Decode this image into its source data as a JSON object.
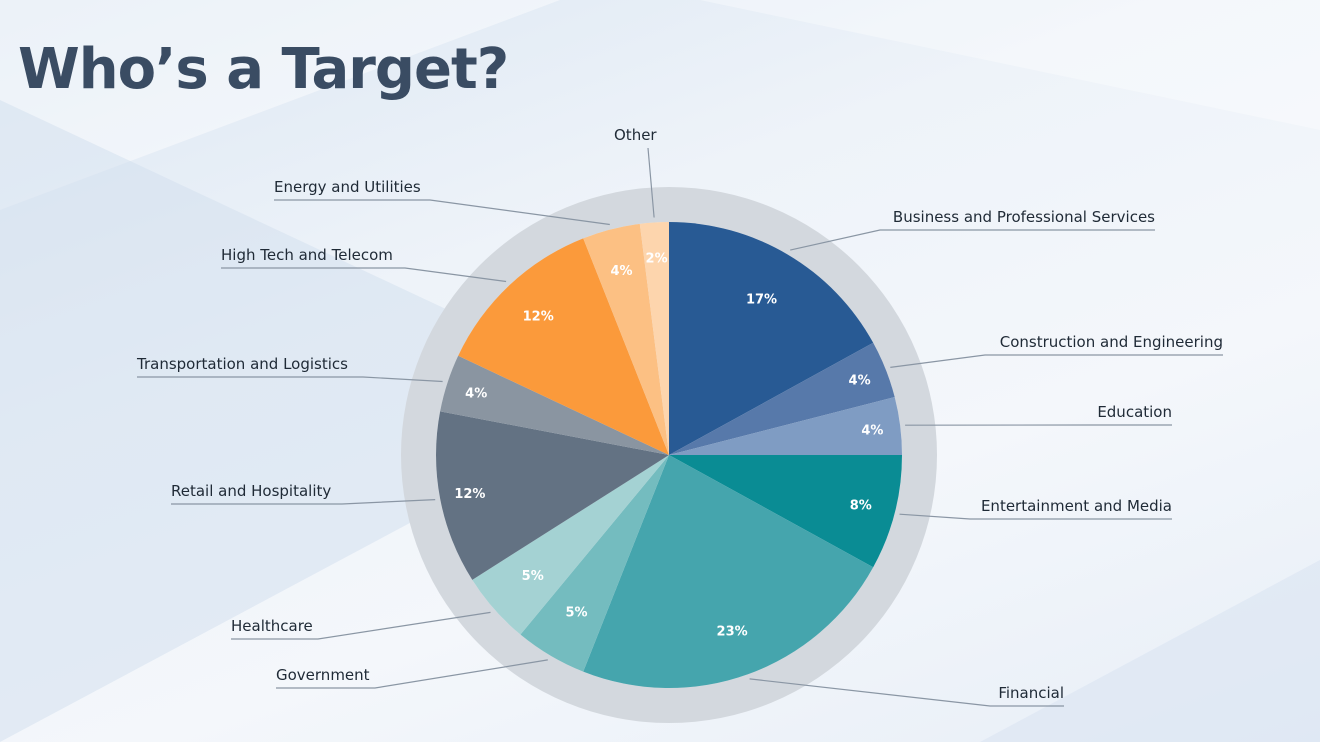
{
  "slide": {
    "title": "Who’s a Target?"
  },
  "colors": {
    "title": "#3a4c63",
    "ring": "#d3d8de",
    "leader": "#8a96a4"
  },
  "chart_data": {
    "type": "pie",
    "title": "",
    "start_angle_deg": 0,
    "direction": "clockwise",
    "slices": [
      {
        "label": "Business and Professional Services",
        "value": 17,
        "display": "17%",
        "color": "#285a94"
      },
      {
        "label": "Construction and Engineering",
        "value": 4,
        "display": "4%",
        "color": "#5779aa"
      },
      {
        "label": "Education",
        "value": 4,
        "display": "4%",
        "color": "#7f9cc3"
      },
      {
        "label": "Entertainment and Media",
        "value": 8,
        "display": "8%",
        "color": "#0a8c94"
      },
      {
        "label": "Financial",
        "value": 23,
        "display": "23%",
        "color": "#45a5ad"
      },
      {
        "label": "Government",
        "value": 5,
        "display": "5%",
        "color": "#74bcbf"
      },
      {
        "label": "Healthcare",
        "value": 5,
        "display": "5%",
        "color": "#a4d2d3"
      },
      {
        "label": "Retail and Hospitality",
        "value": 12,
        "display": "12%",
        "color": "#637283"
      },
      {
        "label": "Transportation and Logistics",
        "value": 4,
        "display": "4%",
        "color": "#8a95a1"
      },
      {
        "label": "High Tech and Telecom",
        "value": 12,
        "display": "12%",
        "color": "#fb9a3b"
      },
      {
        "label": "Energy and Utilities",
        "value": 4,
        "display": "4%",
        "color": "#fcc083"
      },
      {
        "label": "Other",
        "value": 2,
        "display": "2%",
        "color": "#fdd5ad"
      }
    ]
  }
}
